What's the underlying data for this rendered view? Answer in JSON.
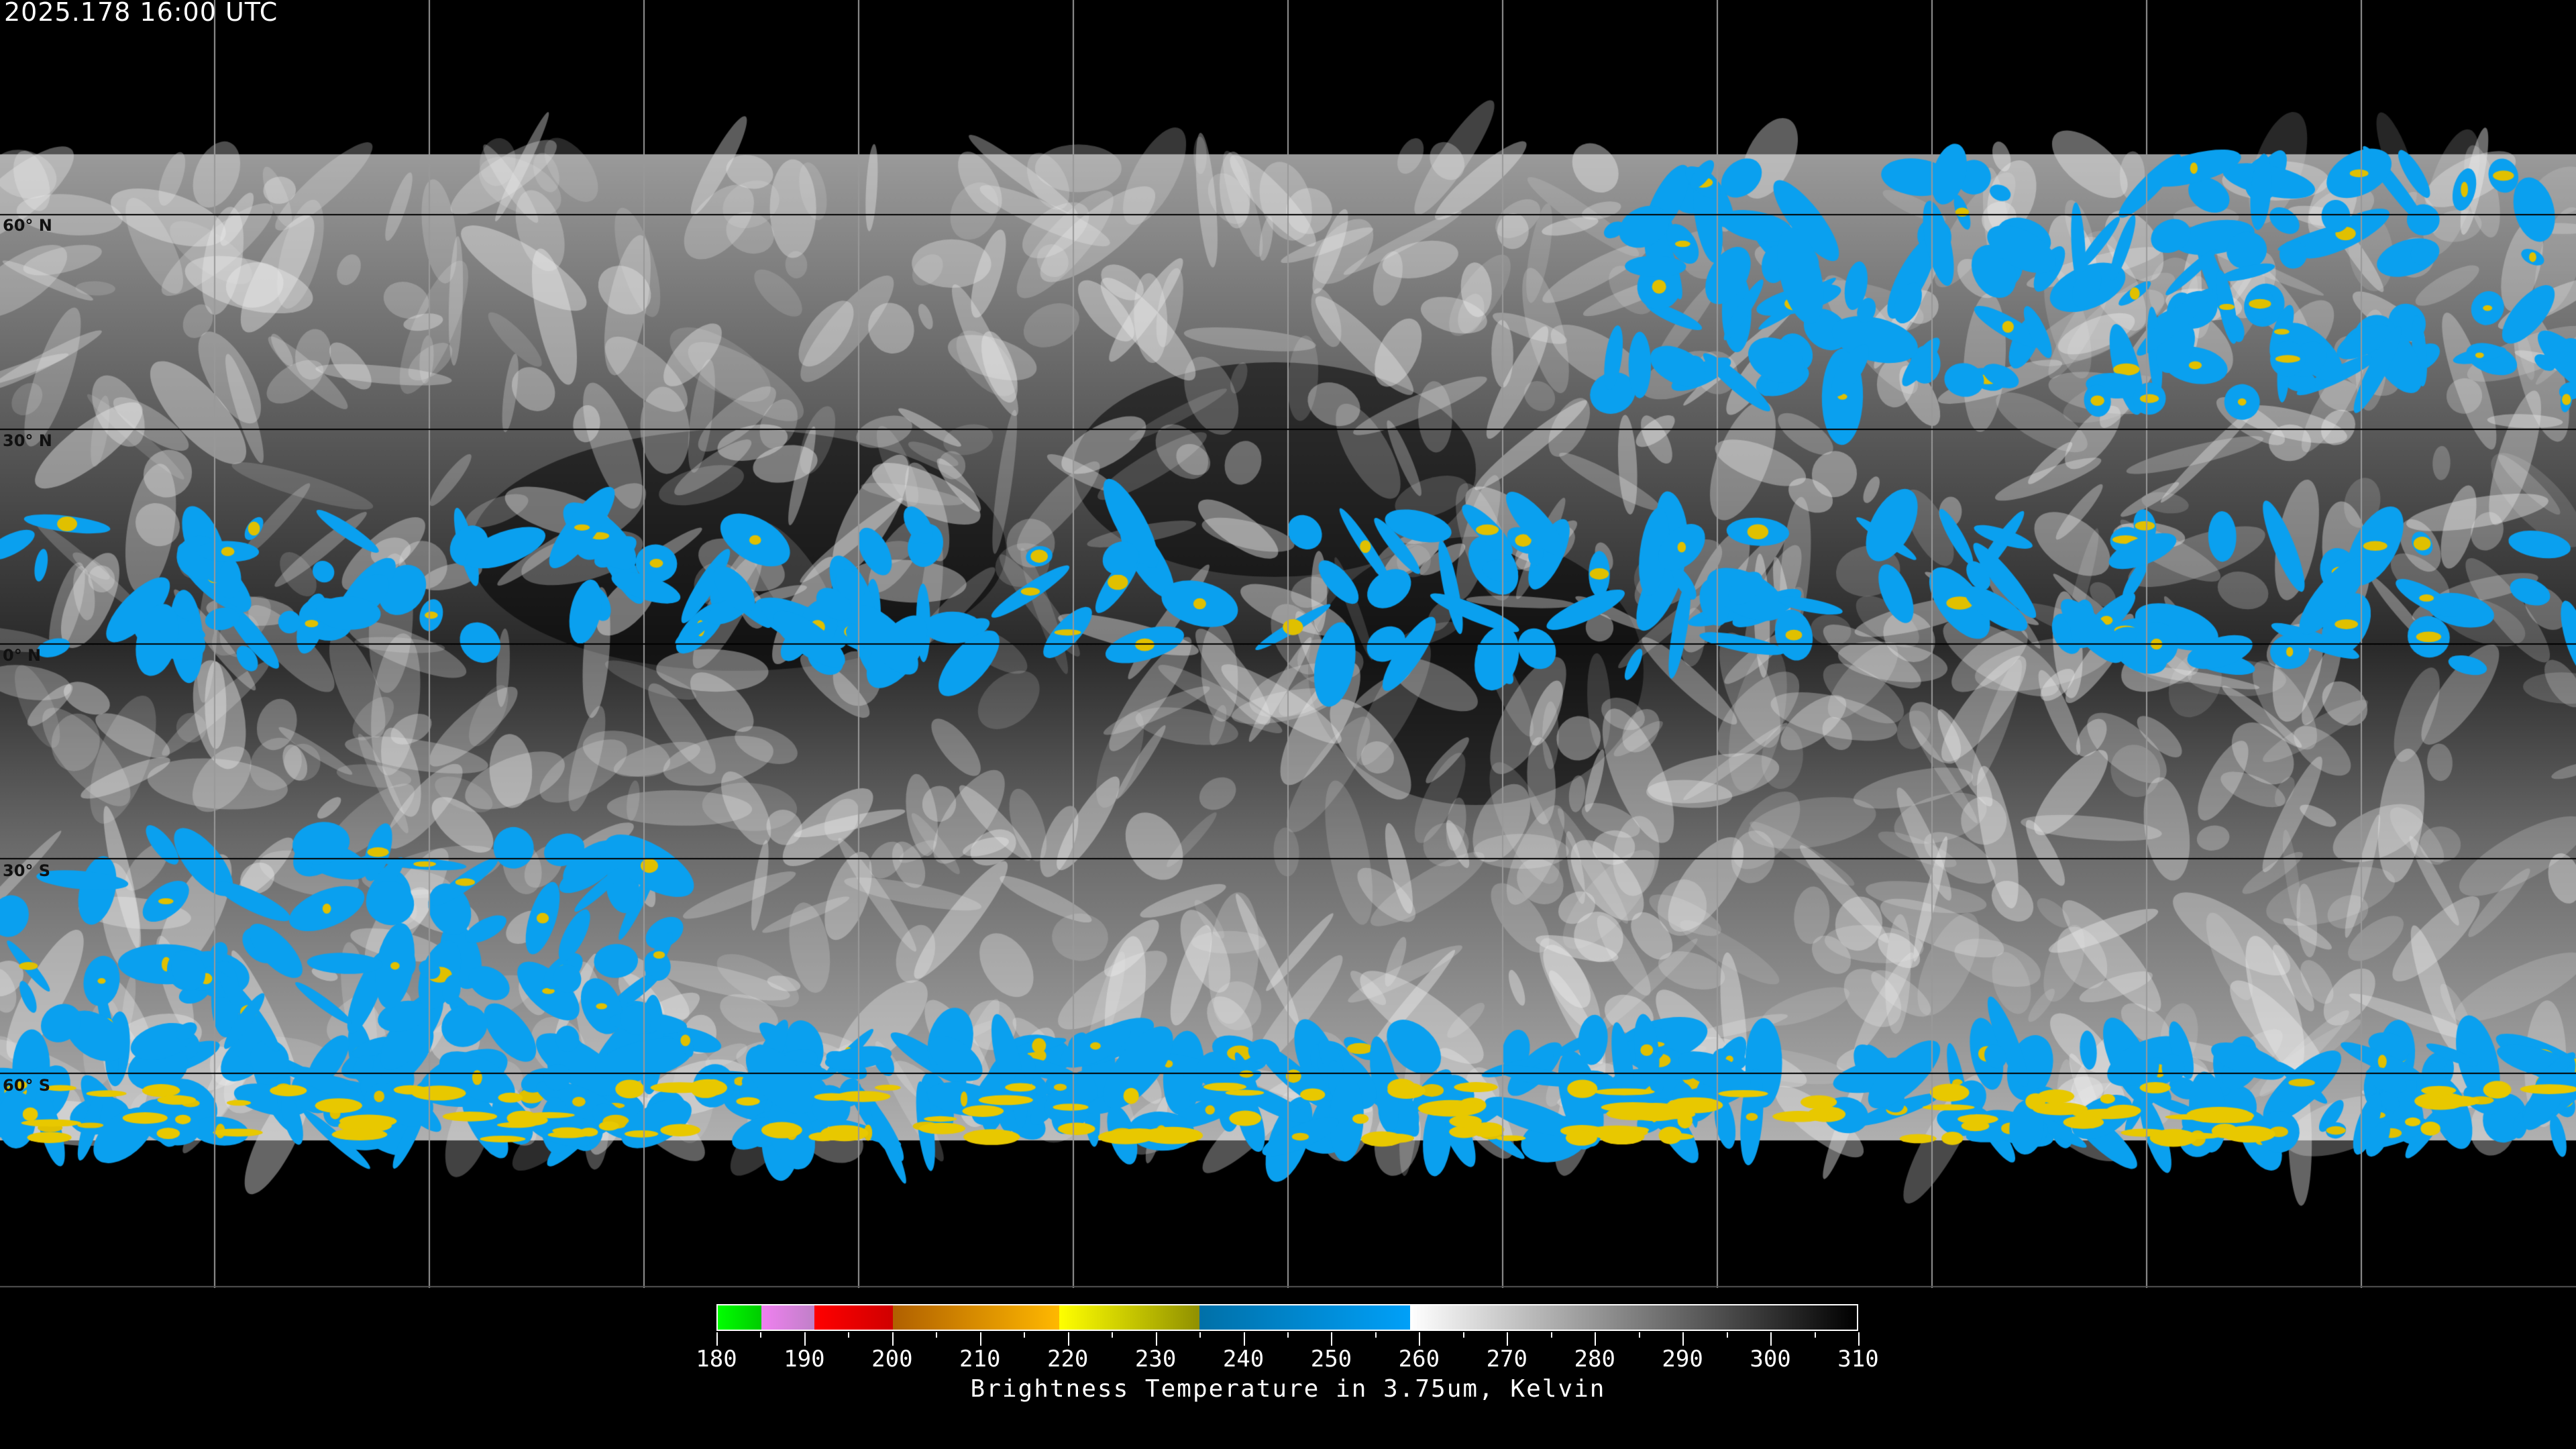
{
  "header": {
    "timestamp": "2025.178 16:00 UTC"
  },
  "map": {
    "projection": "equirectangular",
    "grid_spacing_deg": 30,
    "lat_labels": [
      "60° N",
      "30° N",
      "0° N",
      "30° S",
      "60° S"
    ]
  },
  "colorbar": {
    "title": "Brightness Temperature in 3.75um, Kelvin",
    "min": 180,
    "max": 310,
    "tick_labels": [
      "180",
      "190",
      "200",
      "210",
      "220",
      "230",
      "240",
      "250",
      "260",
      "270",
      "280",
      "290",
      "300",
      "310"
    ],
    "segments": [
      {
        "from": 180,
        "to": 185,
        "colors": [
          "#00ff00",
          "#00cc00"
        ]
      },
      {
        "from": 185,
        "to": 191,
        "colors": [
          "#f080f0",
          "#c080c8"
        ]
      },
      {
        "from": 191,
        "to": 200,
        "colors": [
          "#ff0000",
          "#d00000"
        ]
      },
      {
        "from": 200,
        "to": 219,
        "colors": [
          "#b06000",
          "#ffb800"
        ]
      },
      {
        "from": 219,
        "to": 235,
        "colors": [
          "#ffff00",
          "#909000"
        ]
      },
      {
        "from": 235,
        "to": 259,
        "colors": [
          "#0070a8",
          "#00a0f8"
        ]
      },
      {
        "from": 259,
        "to": 310,
        "colors": [
          "#ffffff",
          "#000000"
        ]
      }
    ]
  }
}
